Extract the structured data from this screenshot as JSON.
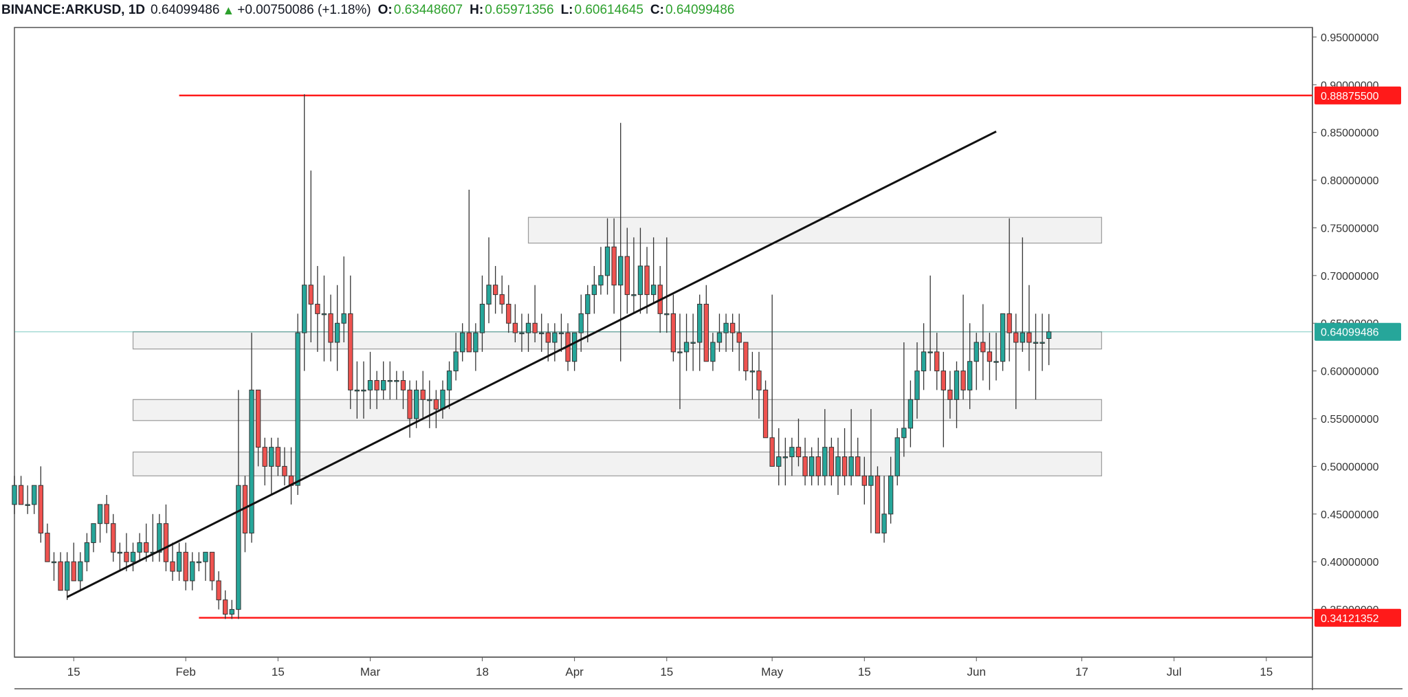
{
  "header": {
    "symbol": "BINANCE:ARKUSD, 1D",
    "last": "0.64099486",
    "change": "+0.00750086 (+1.18%)",
    "o_label": "O:",
    "o_value": "0.63448607",
    "h_label": "H:",
    "h_value": "0.65971356",
    "l_label": "L:",
    "l_value": "0.60614645",
    "c_label": "C:",
    "c_value": "0.64099486"
  },
  "colors": {
    "up": "#26a69a",
    "down": "#ef5350",
    "line": "#111111",
    "level": "#ff1a1a",
    "zone_fill": "#f2f2f2",
    "zone_stroke": "#9a9a9a",
    "last_price": "#26a69a",
    "axis_text": "#333333"
  },
  "chart_data": {
    "type": "candlestick",
    "title": "",
    "ylim": [
      0.3,
      0.96
    ],
    "ytick_values": [
      0.35,
      0.4,
      0.45,
      0.5,
      0.55,
      0.6,
      0.65,
      0.7,
      0.75,
      0.8,
      0.85,
      0.9,
      0.95
    ],
    "ytick_labels": [
      "0.35000000",
      "0.40000000",
      "0.45000000",
      "0.50000000",
      "0.55000000",
      "0.60000000",
      "0.65000000",
      "0.70000000",
      "0.75000000",
      "0.80000000",
      "0.85000000",
      "0.90000000",
      "0.95000000"
    ],
    "x_start": "2019-01-06",
    "x_end": "2019-07-22",
    "xtick_dates": [
      "2019-01-15",
      "2019-02-01",
      "2019-02-15",
      "2019-03-01",
      "2019-03-18",
      "2019-04-01",
      "2019-04-15",
      "2019-05-01",
      "2019-05-15",
      "2019-06-01",
      "2019-06-17",
      "2019-07-01",
      "2019-07-15"
    ],
    "xtick_labels": [
      "15",
      "Feb",
      "15",
      "Mar",
      "18",
      "Apr",
      "15",
      "May",
      "15",
      "Jun",
      "17",
      "Jul",
      "15"
    ],
    "first_date": "2019-01-06",
    "ohlc": [
      [
        0.46,
        0.49,
        0.45,
        0.48
      ],
      [
        0.48,
        0.49,
        0.46,
        0.46
      ],
      [
        0.46,
        0.48,
        0.45,
        0.46
      ],
      [
        0.46,
        0.48,
        0.45,
        0.48
      ],
      [
        0.48,
        0.5,
        0.42,
        0.43
      ],
      [
        0.43,
        0.44,
        0.4,
        0.4
      ],
      [
        0.4,
        0.41,
        0.38,
        0.4
      ],
      [
        0.4,
        0.41,
        0.37,
        0.37
      ],
      [
        0.37,
        0.41,
        0.36,
        0.4
      ],
      [
        0.4,
        0.42,
        0.38,
        0.38
      ],
      [
        0.38,
        0.41,
        0.37,
        0.4
      ],
      [
        0.4,
        0.43,
        0.39,
        0.42
      ],
      [
        0.42,
        0.44,
        0.41,
        0.44
      ],
      [
        0.44,
        0.46,
        0.42,
        0.46
      ],
      [
        0.46,
        0.47,
        0.43,
        0.44
      ],
      [
        0.44,
        0.45,
        0.4,
        0.41
      ],
      [
        0.41,
        0.42,
        0.39,
        0.41
      ],
      [
        0.41,
        0.43,
        0.39,
        0.4
      ],
      [
        0.4,
        0.42,
        0.39,
        0.41
      ],
      [
        0.41,
        0.43,
        0.4,
        0.42
      ],
      [
        0.42,
        0.44,
        0.4,
        0.41
      ],
      [
        0.41,
        0.45,
        0.4,
        0.41
      ],
      [
        0.41,
        0.45,
        0.4,
        0.44
      ],
      [
        0.44,
        0.46,
        0.39,
        0.4
      ],
      [
        0.4,
        0.42,
        0.38,
        0.39
      ],
      [
        0.39,
        0.42,
        0.38,
        0.41
      ],
      [
        0.41,
        0.42,
        0.37,
        0.38
      ],
      [
        0.38,
        0.41,
        0.37,
        0.4
      ],
      [
        0.4,
        0.41,
        0.39,
        0.4
      ],
      [
        0.4,
        0.41,
        0.38,
        0.41
      ],
      [
        0.41,
        0.41,
        0.37,
        0.38
      ],
      [
        0.38,
        0.39,
        0.35,
        0.36
      ],
      [
        0.36,
        0.37,
        0.34,
        0.345
      ],
      [
        0.345,
        0.36,
        0.34,
        0.35
      ],
      [
        0.35,
        0.58,
        0.34,
        0.48
      ],
      [
        0.48,
        0.49,
        0.41,
        0.43
      ],
      [
        0.43,
        0.64,
        0.42,
        0.58
      ],
      [
        0.58,
        0.58,
        0.5,
        0.52
      ],
      [
        0.52,
        0.53,
        0.48,
        0.5
      ],
      [
        0.5,
        0.53,
        0.47,
        0.52
      ],
      [
        0.52,
        0.53,
        0.49,
        0.5
      ],
      [
        0.5,
        0.52,
        0.48,
        0.49
      ],
      [
        0.49,
        0.52,
        0.46,
        0.48
      ],
      [
        0.48,
        0.66,
        0.47,
        0.64
      ],
      [
        0.64,
        0.89,
        0.6,
        0.69
      ],
      [
        0.69,
        0.81,
        0.63,
        0.67
      ],
      [
        0.67,
        0.71,
        0.62,
        0.66
      ],
      [
        0.66,
        0.7,
        0.61,
        0.66
      ],
      [
        0.66,
        0.68,
        0.61,
        0.63
      ],
      [
        0.63,
        0.69,
        0.6,
        0.65
      ],
      [
        0.65,
        0.72,
        0.63,
        0.66
      ],
      [
        0.66,
        0.7,
        0.56,
        0.58
      ],
      [
        0.58,
        0.61,
        0.55,
        0.58
      ],
      [
        0.58,
        0.61,
        0.55,
        0.58
      ],
      [
        0.58,
        0.62,
        0.56,
        0.59
      ],
      [
        0.59,
        0.6,
        0.56,
        0.58
      ],
      [
        0.58,
        0.61,
        0.57,
        0.59
      ],
      [
        0.59,
        0.61,
        0.57,
        0.59
      ],
      [
        0.59,
        0.6,
        0.57,
        0.59
      ],
      [
        0.59,
        0.6,
        0.56,
        0.58
      ],
      [
        0.58,
        0.59,
        0.53,
        0.55
      ],
      [
        0.55,
        0.59,
        0.54,
        0.58
      ],
      [
        0.58,
        0.6,
        0.55,
        0.57
      ],
      [
        0.57,
        0.59,
        0.54,
        0.57
      ],
      [
        0.57,
        0.58,
        0.54,
        0.56
      ],
      [
        0.56,
        0.59,
        0.55,
        0.58
      ],
      [
        0.58,
        0.61,
        0.56,
        0.6
      ],
      [
        0.6,
        0.64,
        0.59,
        0.62
      ],
      [
        0.62,
        0.65,
        0.61,
        0.64
      ],
      [
        0.64,
        0.79,
        0.62,
        0.62
      ],
      [
        0.62,
        0.65,
        0.6,
        0.64
      ],
      [
        0.64,
        0.7,
        0.62,
        0.67
      ],
      [
        0.67,
        0.74,
        0.65,
        0.69
      ],
      [
        0.69,
        0.71,
        0.66,
        0.68
      ],
      [
        0.68,
        0.7,
        0.66,
        0.67
      ],
      [
        0.67,
        0.69,
        0.64,
        0.65
      ],
      [
        0.65,
        0.67,
        0.63,
        0.64
      ],
      [
        0.64,
        0.66,
        0.62,
        0.64
      ],
      [
        0.64,
        0.66,
        0.62,
        0.65
      ],
      [
        0.65,
        0.69,
        0.63,
        0.64
      ],
      [
        0.64,
        0.66,
        0.62,
        0.64
      ],
      [
        0.64,
        0.65,
        0.61,
        0.63
      ],
      [
        0.63,
        0.65,
        0.61,
        0.64
      ],
      [
        0.64,
        0.66,
        0.62,
        0.64
      ],
      [
        0.64,
        0.65,
        0.6,
        0.61
      ],
      [
        0.61,
        0.64,
        0.6,
        0.64
      ],
      [
        0.64,
        0.68,
        0.62,
        0.66
      ],
      [
        0.66,
        0.69,
        0.63,
        0.68
      ],
      [
        0.68,
        0.71,
        0.66,
        0.69
      ],
      [
        0.69,
        0.73,
        0.68,
        0.7
      ],
      [
        0.7,
        0.76,
        0.68,
        0.73
      ],
      [
        0.73,
        0.76,
        0.66,
        0.69
      ],
      [
        0.69,
        0.86,
        0.61,
        0.72
      ],
      [
        0.72,
        0.75,
        0.66,
        0.68
      ],
      [
        0.68,
        0.74,
        0.66,
        0.68
      ],
      [
        0.68,
        0.75,
        0.66,
        0.71
      ],
      [
        0.71,
        0.73,
        0.66,
        0.68
      ],
      [
        0.68,
        0.74,
        0.67,
        0.69
      ],
      [
        0.69,
        0.71,
        0.64,
        0.66
      ],
      [
        0.66,
        0.74,
        0.64,
        0.66
      ],
      [
        0.66,
        0.68,
        0.61,
        0.62
      ],
      [
        0.62,
        0.66,
        0.56,
        0.62
      ],
      [
        0.62,
        0.66,
        0.6,
        0.63
      ],
      [
        0.63,
        0.66,
        0.6,
        0.63
      ],
      [
        0.63,
        0.68,
        0.6,
        0.67
      ],
      [
        0.67,
        0.69,
        0.61,
        0.61
      ],
      [
        0.61,
        0.64,
        0.6,
        0.63
      ],
      [
        0.63,
        0.66,
        0.62,
        0.64
      ],
      [
        0.64,
        0.66,
        0.62,
        0.65
      ],
      [
        0.65,
        0.66,
        0.62,
        0.64
      ],
      [
        0.64,
        0.66,
        0.6,
        0.63
      ],
      [
        0.63,
        0.63,
        0.59,
        0.6
      ],
      [
        0.6,
        0.62,
        0.57,
        0.6
      ],
      [
        0.6,
        0.62,
        0.55,
        0.58
      ],
      [
        0.58,
        0.59,
        0.53,
        0.53
      ],
      [
        0.53,
        0.68,
        0.5,
        0.5
      ],
      [
        0.5,
        0.54,
        0.48,
        0.51
      ],
      [
        0.51,
        0.53,
        0.48,
        0.51
      ],
      [
        0.51,
        0.53,
        0.49,
        0.52
      ],
      [
        0.52,
        0.55,
        0.5,
        0.51
      ],
      [
        0.51,
        0.53,
        0.48,
        0.49
      ],
      [
        0.49,
        0.52,
        0.48,
        0.51
      ],
      [
        0.51,
        0.53,
        0.48,
        0.49
      ],
      [
        0.49,
        0.56,
        0.48,
        0.52
      ],
      [
        0.52,
        0.53,
        0.48,
        0.49
      ],
      [
        0.49,
        0.53,
        0.47,
        0.51
      ],
      [
        0.51,
        0.54,
        0.48,
        0.49
      ],
      [
        0.49,
        0.56,
        0.48,
        0.51
      ],
      [
        0.51,
        0.53,
        0.49,
        0.49
      ],
      [
        0.49,
        0.51,
        0.46,
        0.48
      ],
      [
        0.48,
        0.56,
        0.43,
        0.49
      ],
      [
        0.49,
        0.5,
        0.43,
        0.43
      ],
      [
        0.43,
        0.49,
        0.42,
        0.45
      ],
      [
        0.45,
        0.51,
        0.44,
        0.49
      ],
      [
        0.49,
        0.54,
        0.48,
        0.53
      ],
      [
        0.53,
        0.63,
        0.51,
        0.54
      ],
      [
        0.54,
        0.59,
        0.52,
        0.57
      ],
      [
        0.57,
        0.63,
        0.55,
        0.6
      ],
      [
        0.6,
        0.65,
        0.58,
        0.62
      ],
      [
        0.62,
        0.7,
        0.6,
        0.62
      ],
      [
        0.62,
        0.64,
        0.58,
        0.6
      ],
      [
        0.6,
        0.62,
        0.52,
        0.58
      ],
      [
        0.58,
        0.6,
        0.55,
        0.57
      ],
      [
        0.57,
        0.61,
        0.54,
        0.6
      ],
      [
        0.6,
        0.68,
        0.57,
        0.58
      ],
      [
        0.58,
        0.65,
        0.56,
        0.61
      ],
      [
        0.61,
        0.64,
        0.58,
        0.63
      ],
      [
        0.63,
        0.67,
        0.59,
        0.62
      ],
      [
        0.62,
        0.64,
        0.58,
        0.61
      ],
      [
        0.61,
        0.64,
        0.59,
        0.61
      ],
      [
        0.61,
        0.66,
        0.6,
        0.66
      ],
      [
        0.66,
        0.76,
        0.61,
        0.64
      ],
      [
        0.64,
        0.66,
        0.56,
        0.63
      ],
      [
        0.63,
        0.74,
        0.62,
        0.64
      ],
      [
        0.64,
        0.69,
        0.6,
        0.63
      ],
      [
        0.63,
        0.66,
        0.57,
        0.63
      ],
      [
        0.63,
        0.66,
        0.6,
        0.63
      ],
      [
        0.634,
        0.6597,
        0.6061,
        0.641
      ]
    ],
    "trendline": {
      "start_date": "2019-01-14",
      "start_price": 0.363,
      "end_date": "2019-06-04",
      "end_price": 0.851
    },
    "levels": [
      {
        "price": 0.888755,
        "start_date": "2019-01-31",
        "label": "0.88875500"
      },
      {
        "price": 0.34121352,
        "start_date": "2019-02-03",
        "label": "0.34121352"
      }
    ],
    "zones": [
      {
        "start_date": "2019-03-25",
        "end_date": "2019-06-20",
        "low": 0.734,
        "high": 0.761
      },
      {
        "start_date": "2019-01-24",
        "end_date": "2019-06-20",
        "low": 0.623,
        "high": 0.641
      },
      {
        "start_date": "2019-01-24",
        "end_date": "2019-06-20",
        "low": 0.548,
        "high": 0.57
      },
      {
        "start_date": "2019-01-24",
        "end_date": "2019-06-20",
        "low": 0.49,
        "high": 0.515
      }
    ],
    "last_price": {
      "value": 0.64099486,
      "label": "0.64099486"
    }
  }
}
